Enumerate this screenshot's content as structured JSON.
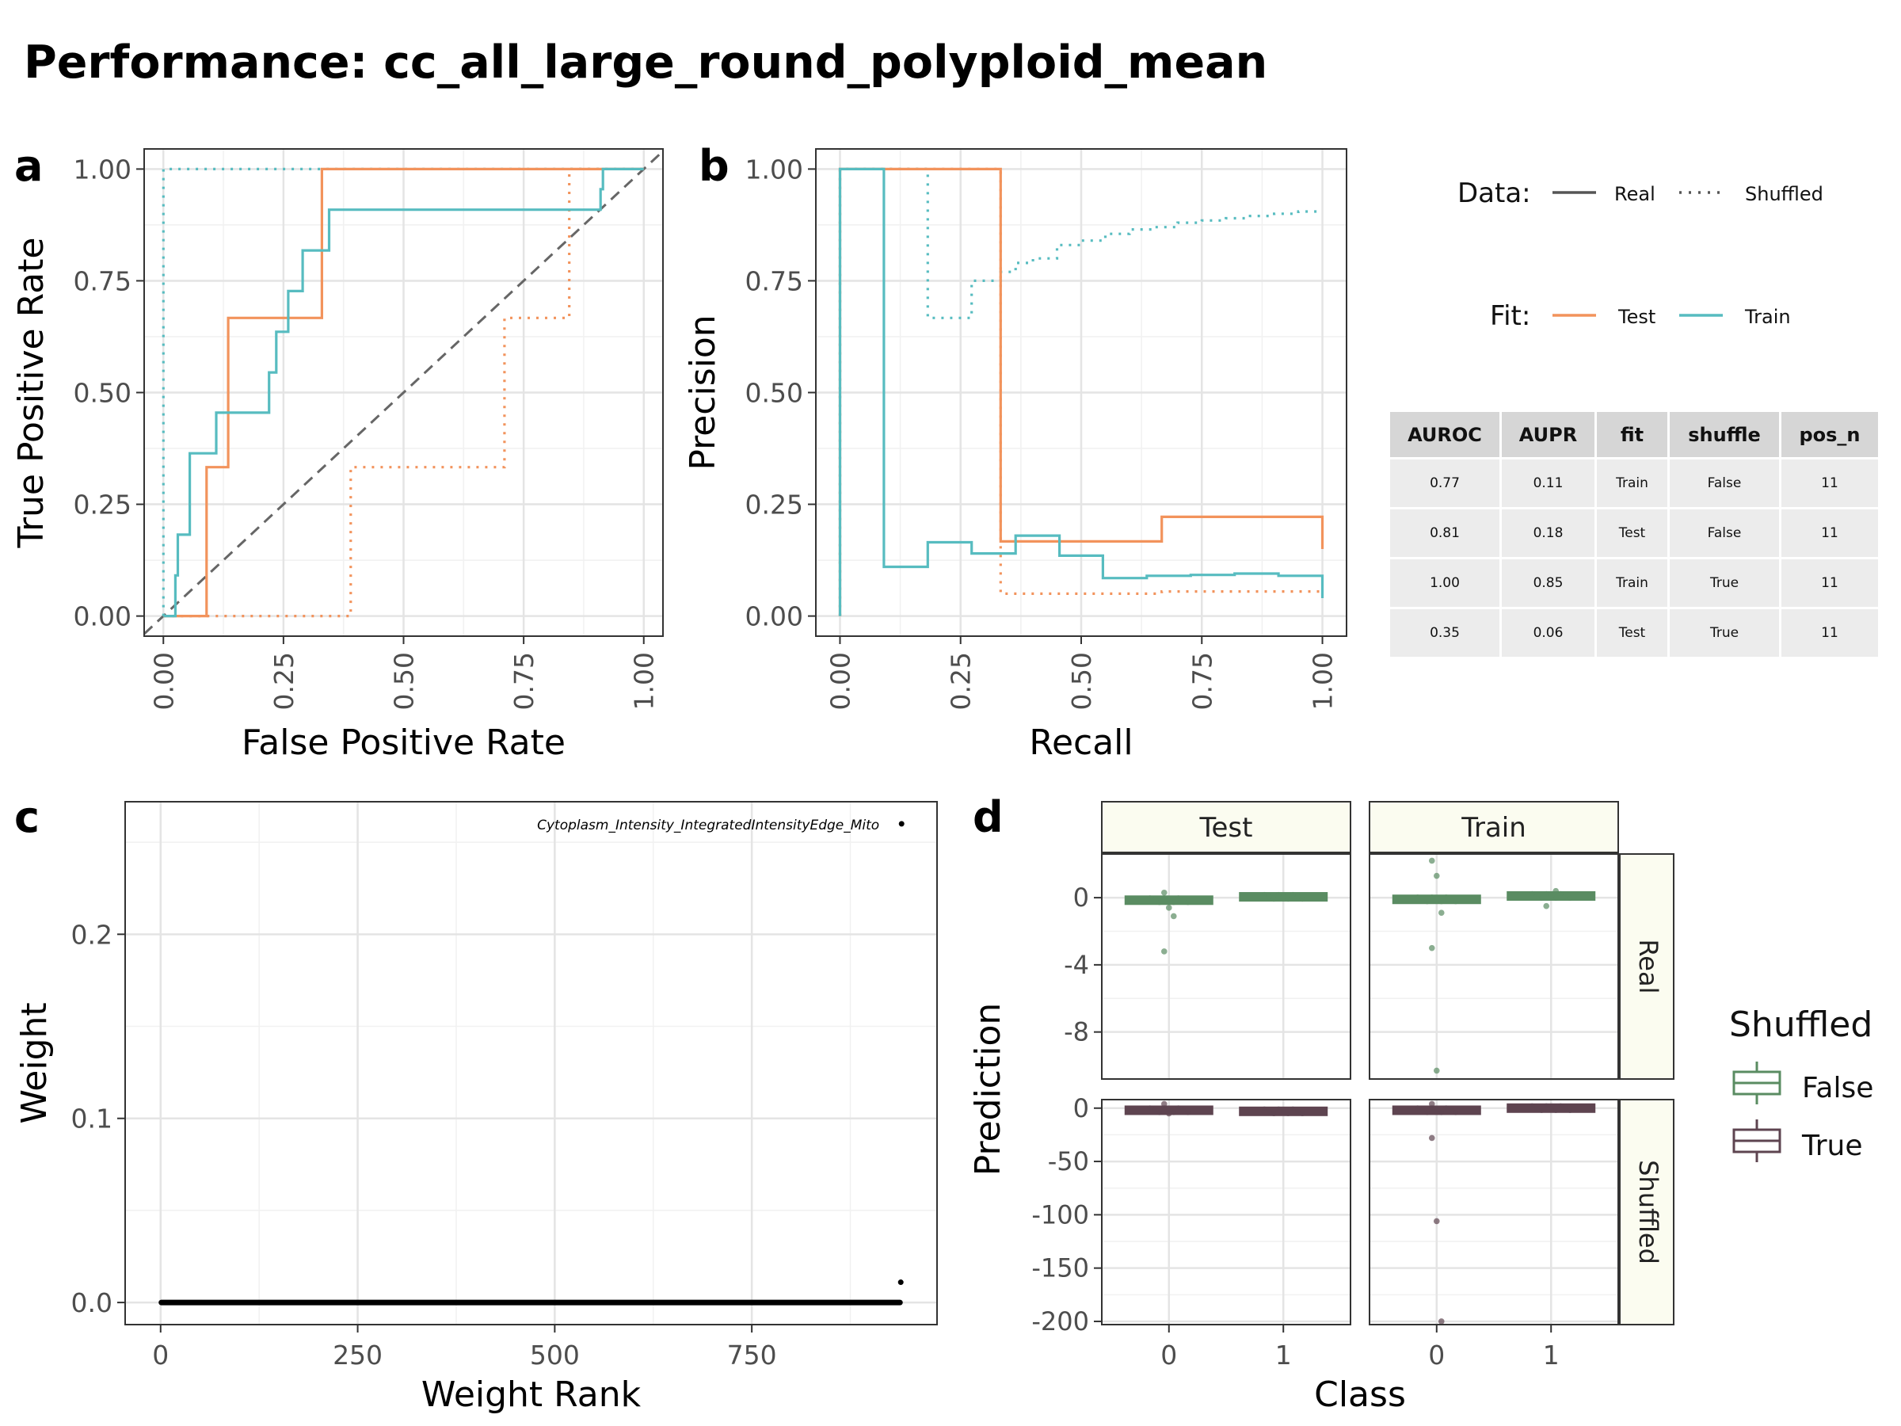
{
  "title": "Performance: cc_all_large_round_polyploid_mean",
  "colors": {
    "test": "#F2935C",
    "train": "#57BCC0",
    "diag": "#666666",
    "shuffled_false": "#5A8C62",
    "shuffled_true": "#5E4450",
    "strip_bg": "#FBFCF0"
  },
  "panel_labels": {
    "a": "a",
    "b": "b",
    "c": "c",
    "d": "d"
  },
  "legend": {
    "data_title": "Data:",
    "data_real": "Real",
    "data_shuffled": "Shuffled",
    "fit_title": "Fit:",
    "fit_test": "Test",
    "fit_train": "Train",
    "shuffled_title": "Shuffled",
    "shuffled_false": "False",
    "shuffled_true": "True"
  },
  "table": {
    "columns": [
      "AUROC",
      "AUPR",
      "fit",
      "shuffle",
      "pos_n"
    ],
    "rows": [
      [
        "0.77",
        "0.11",
        "Train",
        "False",
        "11"
      ],
      [
        "0.81",
        "0.18",
        "Test",
        "False",
        "11"
      ],
      [
        "1.00",
        "0.85",
        "Train",
        "True",
        "11"
      ],
      [
        "0.35",
        "0.06",
        "Test",
        "True",
        "11"
      ]
    ]
  },
  "chart_data": [
    {
      "id": "roc",
      "type": "line",
      "xlabel": "False Positive Rate",
      "ylabel": "True Positive Rate",
      "xlim": [
        -0.04,
        1.04
      ],
      "ylim": [
        -0.045,
        1.045
      ],
      "x_ticks": [
        "0.00",
        "0.25",
        "0.50",
        "0.75",
        "1.00"
      ],
      "y_ticks": [
        "0.00",
        "0.25",
        "0.50",
        "0.75",
        "1.00"
      ],
      "series": [
        {
          "data": "Real",
          "fit": "Test",
          "x": [
            0,
            0.09,
            0.09,
            0.135,
            0.135,
            0.33,
            0.33,
            1.0
          ],
          "y": [
            0,
            0,
            0.333,
            0.333,
            0.667,
            0.667,
            1.0,
            1.0
          ]
        },
        {
          "data": "Real",
          "fit": "Train",
          "x": [
            0,
            0.025,
            0.025,
            0.03,
            0.03,
            0.055,
            0.055,
            0.11,
            0.11,
            0.22,
            0.22,
            0.235,
            0.235,
            0.26,
            0.26,
            0.29,
            0.29,
            0.345,
            0.345,
            0.91,
            0.91,
            0.915,
            0.915,
            1.0
          ],
          "y": [
            0,
            0,
            0.091,
            0.091,
            0.182,
            0.182,
            0.364,
            0.364,
            0.455,
            0.455,
            0.545,
            0.545,
            0.636,
            0.636,
            0.727,
            0.727,
            0.818,
            0.818,
            0.909,
            0.909,
            0.955,
            0.955,
            1.0,
            1.0
          ]
        },
        {
          "data": "Shuffled",
          "fit": "Test",
          "x": [
            0,
            0.39,
            0.39,
            0.71,
            0.71,
            0.845,
            0.845,
            1.0
          ],
          "y": [
            0,
            0,
            0.333,
            0.333,
            0.667,
            0.667,
            1.0,
            1.0
          ]
        },
        {
          "data": "Shuffled",
          "fit": "Train",
          "x": [
            0,
            0,
            1.0
          ],
          "y": [
            0,
            1.0,
            1.0
          ]
        }
      ]
    },
    {
      "id": "pr",
      "type": "line",
      "xlabel": "Recall",
      "ylabel": "Precision",
      "xlim": [
        -0.05,
        1.05
      ],
      "ylim": [
        -0.045,
        1.045
      ],
      "x_ticks": [
        "0.00",
        "0.25",
        "0.50",
        "0.75",
        "1.00"
      ],
      "y_ticks": [
        "0.00",
        "0.25",
        "0.50",
        "0.75",
        "1.00"
      ],
      "series": [
        {
          "data": "Real",
          "fit": "Test",
          "x": [
            0,
            0,
            0.333,
            0.333,
            0.667,
            0.667,
            1.0,
            1.0
          ],
          "y": [
            0,
            1.0,
            1.0,
            0.167,
            0.167,
            0.222,
            0.222,
            0.15
          ]
        },
        {
          "data": "Real",
          "fit": "Train",
          "x": [
            0,
            0,
            0.091,
            0.091,
            0.182,
            0.182,
            0.273,
            0.273,
            0.364,
            0.364,
            0.455,
            0.455,
            0.545,
            0.545,
            0.636,
            0.636,
            0.727,
            0.727,
            0.818,
            0.818,
            0.909,
            0.909,
            1.0,
            1.0
          ],
          "y": [
            0,
            1.0,
            1.0,
            0.11,
            0.11,
            0.165,
            0.165,
            0.14,
            0.14,
            0.18,
            0.18,
            0.135,
            0.135,
            0.085,
            0.085,
            0.09,
            0.09,
            0.092,
            0.092,
            0.095,
            0.095,
            0.09,
            0.09,
            0.04
          ]
        },
        {
          "data": "Shuffled",
          "fit": "Test",
          "x": [
            0,
            0,
            0.333,
            0.333,
            0.667,
            0.667,
            1.0
          ],
          "y": [
            0,
            1.0,
            1.0,
            0.05,
            0.05,
            0.055,
            0.055
          ]
        },
        {
          "data": "Shuffled",
          "fit": "Train",
          "x": [
            0,
            0,
            0.182,
            0.182,
            0.273,
            0.273,
            0.333,
            0.333,
            0.364,
            0.364,
            0.4,
            0.4,
            0.45,
            0.45,
            0.5,
            0.5,
            0.55,
            0.55,
            0.6,
            0.6,
            0.65,
            0.65,
            0.7,
            0.7,
            0.75,
            0.75,
            0.8,
            0.8,
            0.85,
            0.85,
            0.9,
            0.9,
            0.95,
            0.95,
            1.0
          ],
          "y": [
            0,
            1.0,
            1.0,
            0.667,
            0.667,
            0.75,
            0.75,
            0.77,
            0.77,
            0.79,
            0.79,
            0.8,
            0.8,
            0.83,
            0.83,
            0.84,
            0.84,
            0.855,
            0.855,
            0.865,
            0.865,
            0.87,
            0.87,
            0.88,
            0.88,
            0.885,
            0.885,
            0.89,
            0.89,
            0.895,
            0.895,
            0.9,
            0.9,
            0.905,
            0.905
          ]
        }
      ]
    },
    {
      "id": "weights",
      "type": "scatter",
      "xlabel": "Weight Rank",
      "ylabel": "Weight",
      "xlim": [
        -45,
        985
      ],
      "ylim": [
        -0.012,
        0.272
      ],
      "x_ticks": [
        0,
        250,
        500,
        750
      ],
      "y_ticks": [
        "0.0",
        "0.1",
        "0.2"
      ],
      "n_points": 940,
      "points": [
        {
          "rank": 940,
          "weight": 0.26,
          "label": "Cytoplasm_Intensity_IntegratedIntensityEdge_Mito"
        },
        {
          "rank": 939,
          "weight": 0.011
        }
      ],
      "baseline": {
        "from_rank": 1,
        "to_rank": 938,
        "weight": 0.0
      }
    },
    {
      "id": "predictions",
      "type": "boxplot",
      "xlabel": "Class",
      "ylabel": "Prediction",
      "columns": [
        "Test",
        "Train"
      ],
      "rows": [
        "Real",
        "Shuffled"
      ],
      "x_ticks": [
        "0",
        "1"
      ],
      "row_scales": {
        "Real": {
          "ylim": [
            -10.8,
            2.6
          ],
          "ticks": [
            "0",
            "-4",
            "-8"
          ],
          "tick_values": [
            0,
            -4,
            -8
          ]
        },
        "Shuffled": {
          "ylim": [
            -203,
            8
          ],
          "ticks": [
            "0",
            "-50",
            "-100",
            "-150",
            "-200"
          ],
          "tick_values": [
            0,
            -50,
            -100,
            -150,
            -200
          ]
        }
      },
      "panels": [
        {
          "row": "Real",
          "col": "Test",
          "shuffled": "False",
          "boxes": [
            {
              "class": 0,
              "median": -0.15
            },
            {
              "class": 1,
              "median": 0.05
            }
          ],
          "outliers": [
            {
              "class": 0,
              "y": 0.3
            },
            {
              "class": 0,
              "y": -0.6
            },
            {
              "class": 0,
              "y": -1.1
            },
            {
              "class": 0,
              "y": -3.2
            }
          ]
        },
        {
          "row": "Real",
          "col": "Train",
          "shuffled": "False",
          "boxes": [
            {
              "class": 0,
              "median": -0.1
            },
            {
              "class": 1,
              "median": 0.1
            }
          ],
          "outliers": [
            {
              "class": 0,
              "y": 2.2
            },
            {
              "class": 0,
              "y": 1.3
            },
            {
              "class": 0,
              "y": -0.9
            },
            {
              "class": 0,
              "y": -3.0
            },
            {
              "class": 0,
              "y": -10.3
            },
            {
              "class": 1,
              "y": 0.4
            },
            {
              "class": 1,
              "y": -0.5
            }
          ]
        },
        {
          "row": "Shuffled",
          "col": "Test",
          "shuffled": "True",
          "boxes": [
            {
              "class": 0,
              "median": -2
            },
            {
              "class": 1,
              "median": -3
            }
          ],
          "outliers": [
            {
              "class": 0,
              "y": 4
            },
            {
              "class": 0,
              "y": -5
            }
          ]
        },
        {
          "row": "Shuffled",
          "col": "Train",
          "shuffled": "True",
          "boxes": [
            {
              "class": 0,
              "median": -2
            },
            {
              "class": 1,
              "median": 0
            }
          ],
          "outliers": [
            {
              "class": 0,
              "y": -28
            },
            {
              "class": 0,
              "y": -106
            },
            {
              "class": 0,
              "y": -200
            },
            {
              "class": 0,
              "y": 4
            }
          ]
        }
      ]
    }
  ]
}
